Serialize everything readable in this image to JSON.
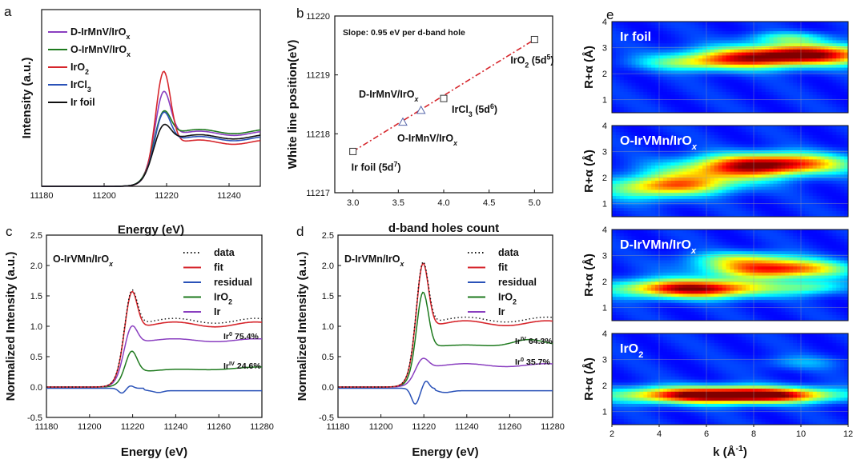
{
  "colors": {
    "purple": "#8a3fc0",
    "green": "#1e7a1e",
    "red": "#d6262c",
    "blue": "#2a52b8",
    "black": "#111111",
    "navy": "#2d3d7a",
    "ir_only": "#1e2fb0"
  },
  "chart_data": [
    {
      "id": "a",
      "type": "line",
      "panel_label": "a",
      "xlabel": "Energy (eV)",
      "ylabel": "Intensity (a.u.)",
      "xlim": [
        11180,
        11250
      ],
      "ylim": [
        0,
        1.0
      ],
      "x_ticks": [
        "11180",
        "11200",
        "11220",
        "11240"
      ],
      "series": [
        {
          "name": "D-IrMnV/IrO",
          "sub": "x",
          "color": "#8a3fc0",
          "peak": 0.57,
          "after": 0.3
        },
        {
          "name": "O-IrMnV/IrO",
          "sub": "x",
          "color": "#1e7a1e",
          "peak": 0.46,
          "after": 0.31
        },
        {
          "name": "IrO",
          "sub": "2",
          "color": "#d6262c",
          "peak": 0.68,
          "after": 0.25
        },
        {
          "name": "IrCl",
          "sub": "3",
          "color": "#2a52b8",
          "peak": 0.45,
          "after": 0.27
        },
        {
          "name": "Ir foil",
          "sub": "",
          "color": "#111111",
          "peak": 0.38,
          "after": 0.28
        }
      ]
    },
    {
      "id": "b",
      "type": "scatter",
      "panel_label": "b",
      "xlabel": "d-band holes count",
      "ylabel": "White line position(eV)",
      "xlim": [
        2.8,
        5.2
      ],
      "ylim": [
        11217,
        11220
      ],
      "x_ticks": [
        "3.0",
        "3.5",
        "4.0",
        "4.5",
        "5.0"
      ],
      "y_ticks": [
        "11217",
        "11218",
        "11219",
        "11220"
      ],
      "annotation": "Slope: 0.95 eV per d-band hole",
      "fit_line": {
        "x0": 3.0,
        "y0": 11217.7,
        "x1": 5.0,
        "y1": 11219.6
      },
      "squares": [
        {
          "x": 3.0,
          "y": 11217.7,
          "label": "Ir foil (5d",
          "sup": "7",
          "tail": ")"
        },
        {
          "x": 4.0,
          "y": 11218.6,
          "label": "IrCl",
          "sub": "3",
          "label2": " (5d",
          "sup": "6",
          "tail": ")"
        },
        {
          "x": 5.0,
          "y": 11219.6,
          "label": "IrO",
          "sub": "2",
          "label2": " (5d",
          "sup": "5",
          "tail": ")"
        }
      ],
      "triangles": [
        {
          "x": 3.75,
          "y": 11218.4,
          "label": "D-IrMnV/IrO",
          "sub": "x"
        },
        {
          "x": 3.55,
          "y": 11218.2,
          "label": "O-IrMnV/IrO",
          "sub": "x"
        }
      ]
    },
    {
      "id": "c",
      "type": "line",
      "panel_label": "c",
      "title": "O-IrVMn/IrO",
      "title_sub": "x",
      "xlabel": "Energy (eV)",
      "ylabel": "Normalized Intensity (a.u.)",
      "xlim": [
        11180,
        11280
      ],
      "ylim": [
        -0.5,
        2.5
      ],
      "x_ticks": [
        "11180",
        "11200",
        "11220",
        "11240",
        "11260",
        "11280"
      ],
      "y_ticks": [
        "-0.5",
        "0.0",
        "0.5",
        "1.0",
        "1.5",
        "2.0",
        "2.5"
      ],
      "legend": [
        {
          "name": "data",
          "style": "dotted",
          "color": "#111111"
        },
        {
          "name": "fit",
          "color": "#d6262c"
        },
        {
          "name": "residual",
          "color": "#2a52b8"
        },
        {
          "name": "IrO",
          "sub": "2",
          "color": "#1e7a1e"
        },
        {
          "name": "Ir",
          "color": "#8a3fc0"
        }
      ],
      "components": {
        "fit_peak": 1.68,
        "fit_after": 1.03,
        "ir_peak": 1.08,
        "ir_after": 0.77,
        "iro2_peak": 0.62,
        "iro2_after": 0.27
      },
      "percent_labels": [
        {
          "sym": "Ir",
          "sup": "0",
          "val": " 75.4%"
        },
        {
          "sym": "Ir",
          "sup": "IV",
          "val": " 24.6%"
        }
      ]
    },
    {
      "id": "d",
      "type": "line",
      "panel_label": "d",
      "title": "D-IrVMn/IrO",
      "title_sub": "x",
      "xlabel": "Energy (eV)",
      "ylabel": "Normalized Intensity (a.u.)",
      "xlim": [
        11180,
        11280
      ],
      "ylim": [
        -0.5,
        2.5
      ],
      "x_ticks": [
        "11180",
        "11200",
        "11220",
        "11240",
        "11260",
        "11280"
      ],
      "y_ticks": [
        "-0.5",
        "0.0",
        "0.5",
        "1.0",
        "1.5",
        "2.0",
        "2.5"
      ],
      "legend": [
        {
          "name": "data",
          "style": "dotted",
          "color": "#111111"
        },
        {
          "name": "fit",
          "color": "#d6262c"
        },
        {
          "name": "residual",
          "color": "#2a52b8"
        },
        {
          "name": "IrO",
          "sub": "2",
          "color": "#1e7a1e"
        },
        {
          "name": "Ir",
          "color": "#8a3fc0"
        }
      ],
      "components": {
        "fit_peak": 2.15,
        "fit_after": 1.05,
        "iro2_peak": 1.62,
        "iro2_after": 0.68,
        "ir_peak": 0.52,
        "ir_after": 0.36
      },
      "percent_labels": [
        {
          "sym": "Ir",
          "sup": "IV",
          "val": " 64.3%"
        },
        {
          "sym": "Ir",
          "sup": "0",
          "val": " 35.7%"
        }
      ]
    },
    {
      "id": "e",
      "type": "heatmap",
      "panel_label": "e",
      "xlabel": "k (Å",
      "xlabel_sup": "-1",
      "xlabel_tail": ")",
      "ylabel": "R+α (Å)",
      "xlim": [
        2,
        12
      ],
      "ylim": [
        0.5,
        4
      ],
      "x_ticks": [
        "2",
        "4",
        "6",
        "8",
        "10",
        "12"
      ],
      "y_ticks": [
        "1",
        "2",
        "3",
        "4"
      ],
      "maps": [
        {
          "title": "Ir foil",
          "sub": "",
          "blobs": [
            {
              "k": 10.0,
              "r": 2.75,
              "sk": 2.4,
              "sr": 0.28,
              "a": 1.0
            },
            {
              "k": 7.0,
              "r": 2.5,
              "sk": 2.0,
              "sr": 0.25,
              "a": 0.45
            },
            {
              "k": 9.5,
              "r": 3.4,
              "sk": 1.2,
              "sr": 0.15,
              "a": 0.3
            },
            {
              "k": 5.0,
              "r": 2.4,
              "sk": 1.5,
              "sr": 0.2,
              "a": 0.18
            }
          ]
        },
        {
          "title": "O-IrVMn/IrO",
          "sub": "x",
          "blobs": [
            {
              "k": 8.8,
              "r": 2.55,
              "sk": 2.2,
              "sr": 0.28,
              "a": 0.95
            },
            {
              "k": 5.0,
              "r": 1.75,
              "sk": 1.8,
              "sr": 0.25,
              "a": 0.55
            },
            {
              "k": 6.5,
              "r": 2.2,
              "sk": 2.0,
              "sr": 0.25,
              "a": 0.4
            },
            {
              "k": 3.5,
              "r": 1.5,
              "sk": 1.5,
              "sr": 0.3,
              "a": 0.3
            }
          ]
        },
        {
          "title": "D-IrVMn/IrO",
          "sub": "x",
          "blobs": [
            {
              "k": 5.5,
              "r": 1.75,
              "sk": 2.2,
              "sr": 0.25,
              "a": 1.0
            },
            {
              "k": 9.0,
              "r": 2.5,
              "sk": 2.0,
              "sr": 0.25,
              "a": 0.85
            },
            {
              "k": 7.5,
              "r": 2.9,
              "sk": 1.5,
              "sr": 0.2,
              "a": 0.35
            },
            {
              "k": 10.5,
              "r": 1.8,
              "sk": 1.0,
              "sr": 0.2,
              "a": 0.3
            }
          ]
        },
        {
          "title": "IrO",
          "sub": "2",
          "blobs": [
            {
              "k": 6.0,
              "r": 1.65,
              "sk": 2.6,
              "sr": 0.22,
              "a": 1.0
            },
            {
              "k": 9.0,
              "r": 1.65,
              "sk": 2.0,
              "sr": 0.2,
              "a": 0.55
            },
            {
              "k": 10.0,
              "r": 2.9,
              "sk": 1.2,
              "sr": 0.2,
              "a": 0.15
            }
          ]
        }
      ]
    }
  ]
}
